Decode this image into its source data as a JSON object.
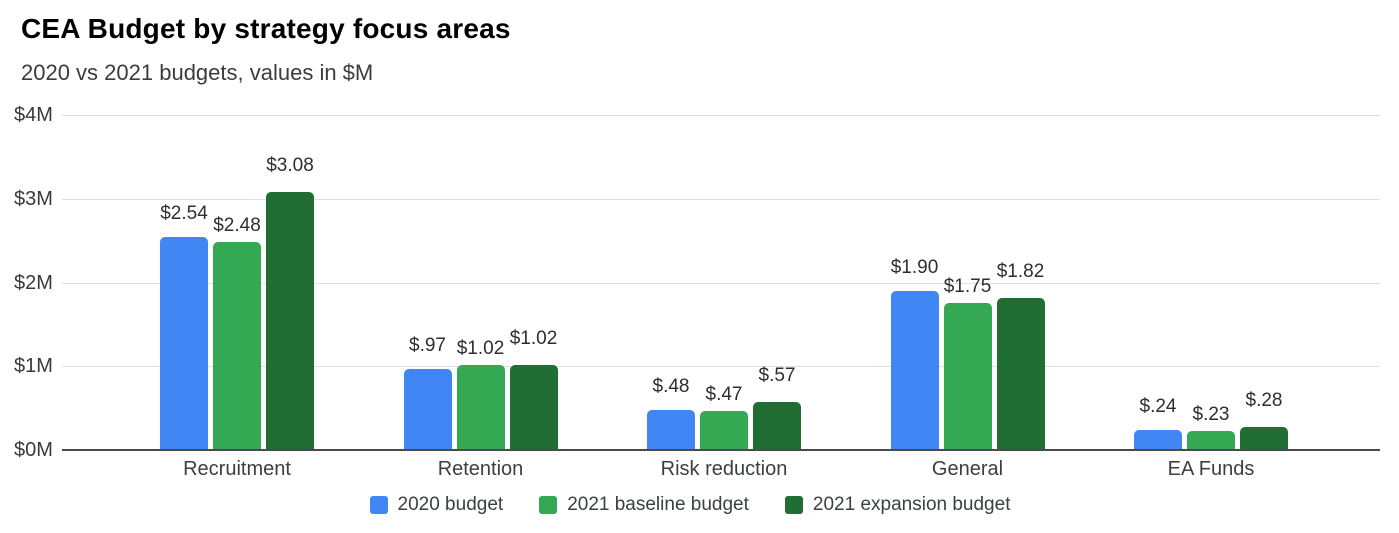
{
  "chart_data": {
    "type": "bar",
    "title": "CEA Budget by strategy focus areas",
    "subtitle": "2020 vs 2021 budgets, values in $M",
    "categories": [
      "Recruitment",
      "Retention",
      "Risk reduction",
      "General",
      "EA Funds"
    ],
    "series": [
      {
        "name": "2020 budget",
        "color": "#4285F4",
        "values": [
          2.54,
          0.97,
          0.48,
          1.9,
          0.24
        ],
        "value_labels": [
          "$2.54",
          "$.97",
          "$.48",
          "$1.90",
          "$.24"
        ]
      },
      {
        "name": "2021 baseline budget",
        "color": "#34A853",
        "values": [
          2.48,
          1.02,
          0.47,
          1.75,
          0.23
        ],
        "value_labels": [
          "$2.48",
          "$1.02",
          "$.47",
          "$1.75",
          "$.23"
        ]
      },
      {
        "name": "2021 expansion budget",
        "color": "#206E34",
        "values": [
          3.08,
          1.02,
          0.57,
          1.82,
          0.28
        ],
        "value_labels": [
          "$3.08",
          "$1.02",
          "$.57",
          "$1.82",
          "$.28"
        ]
      }
    ],
    "y_axis": {
      "min": 0,
      "max": 4,
      "tick_labels": [
        "$0M",
        "$1M",
        "$2M",
        "$3M",
        "$4M"
      ]
    },
    "legend_position": "bottom",
    "grid": true,
    "colors": {
      "gridline": "#e0e0e0",
      "axis_line": "#4a4a4a",
      "title": "#000000",
      "subtitle": "#3c3c3c",
      "tick_label": "#3a3a3a",
      "value_label": "#2e2e2e",
      "category_label": "#3c4043",
      "legend_label": "#3c4043",
      "background": "#ffffff"
    }
  }
}
